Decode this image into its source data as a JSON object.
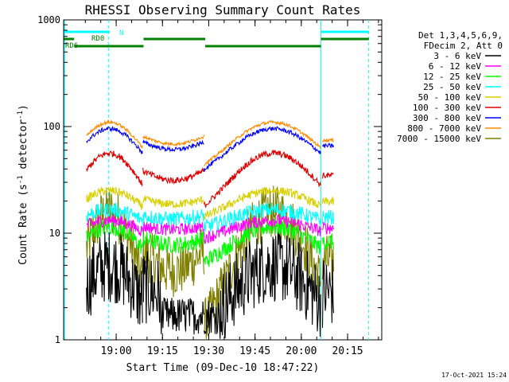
{
  "chart_data": {
    "type": "line",
    "title": "RHESSI Observing Summary Count Rates",
    "ylabel_main": "Count Rate (s",
    "ylabel_sup": "-1",
    "ylabel_mid": " detector",
    "ylabel_end": ")",
    "xlabel": "Start Time (09-Dec-10 18:47:22)",
    "timestamp": "17-Oct-2021 15:24",
    "y_scale": "log",
    "ylim": [
      1,
      1000
    ],
    "xlim_minutes_after_start": [
      -4.4,
      98.7
    ],
    "x_ticks": [
      {
        "label": "19:00",
        "t": 12.63
      },
      {
        "label": "19:15",
        "t": 27.63
      },
      {
        "label": "19:30",
        "t": 42.63
      },
      {
        "label": "19:45",
        "t": 57.63
      },
      {
        "label": "20:00",
        "t": 72.63
      },
      {
        "label": "20:15",
        "t": 87.63
      }
    ],
    "y_ticks": [
      {
        "label": "1",
        "v": 1
      },
      {
        "label": "10",
        "v": 10
      },
      {
        "label": "100",
        "v": 100
      },
      {
        "label": "1000",
        "v": 1000
      }
    ],
    "legend_header": [
      "Det 1,3,4,5,6,9,",
      "FDecim 2, Att 0"
    ],
    "flag_labels": [
      "N",
      "RD0",
      "RD6"
    ],
    "series": [
      {
        "name": "3 - 6 keV",
        "color": "#000000"
      },
      {
        "name": "6 - 12 keV",
        "color": "#ff00ff"
      },
      {
        "name": "12 - 25 keV",
        "color": "#00ff00"
      },
      {
        "name": "25 - 50 keV",
        "color": "#00ffff"
      },
      {
        "name": "50 - 100 keV",
        "color": "#d8d000"
      },
      {
        "name": "100 - 300 keV",
        "color": "#dd0000"
      },
      {
        "name": "300 - 800 keV",
        "color": "#0000ff"
      },
      {
        "name": "800 - 7000 keV",
        "color": "#ff8c00"
      },
      {
        "name": "7000 - 15000 keV",
        "color": "#808000"
      }
    ]
  },
  "colors": {
    "flag_cyan": "#00ffff",
    "flag_green": "#008000",
    "axis": "#000000"
  }
}
